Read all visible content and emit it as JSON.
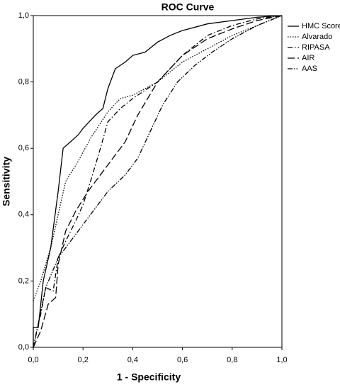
{
  "chart_data": {
    "type": "line",
    "title": "ROC Curve",
    "x_label": "1 - Specificity",
    "y_label": "Sensitivity",
    "xlim": [
      0,
      1
    ],
    "ylim": [
      0,
      1
    ],
    "xticks": [
      {
        "value": 0,
        "label": "0,0"
      },
      {
        "value": 0.2,
        "label": "0,2"
      },
      {
        "value": 0.4,
        "label": "0,4"
      },
      {
        "value": 0.6,
        "label": "0,6"
      },
      {
        "value": 0.8,
        "label": "0,8"
      },
      {
        "value": 1,
        "label": "1,0"
      }
    ],
    "yticks": [
      {
        "value": 0,
        "label": "0,0"
      },
      {
        "value": 0.2,
        "label": "0,2"
      },
      {
        "value": 0.4,
        "label": "0,4"
      },
      {
        "value": 0.6,
        "label": "0,6"
      },
      {
        "value": 0.8,
        "label": "0,8"
      },
      {
        "value": 1,
        "label": "1,0"
      }
    ],
    "grid": false,
    "legend": "right",
    "series": [
      {
        "name": "HMC Score",
        "color": "#000000",
        "style": "solid",
        "x": [
          0,
          0,
          0.02,
          0.04,
          0.07,
          0.1,
          0.12,
          0.15,
          0.18,
          0.2,
          0.25,
          0.28,
          0.3,
          0.33,
          0.37,
          0.4,
          0.45,
          0.5,
          0.55,
          0.6,
          0.7,
          0.8,
          0.9,
          1
        ],
        "values": [
          0,
          0.06,
          0.06,
          0.2,
          0.3,
          0.47,
          0.6,
          0.62,
          0.64,
          0.66,
          0.7,
          0.72,
          0.78,
          0.84,
          0.86,
          0.88,
          0.89,
          0.92,
          0.94,
          0.955,
          0.975,
          0.985,
          0.995,
          1
        ]
      },
      {
        "name": "Alvarado",
        "color": "#000000",
        "style": "dotted",
        "x": [
          0,
          0.03,
          0.07,
          0.1,
          0.13,
          0.18,
          0.23,
          0.3,
          0.35,
          0.4,
          0.5,
          0.6,
          0.7,
          0.8,
          0.9,
          1
        ],
        "values": [
          0.14,
          0.2,
          0.3,
          0.4,
          0.5,
          0.56,
          0.63,
          0.71,
          0.75,
          0.76,
          0.8,
          0.86,
          0.9,
          0.94,
          0.97,
          1
        ]
      },
      {
        "name": "RIPASA",
        "color": "#000000",
        "style": "dash-dot",
        "x": [
          0,
          0.03,
          0.05,
          0.08,
          0.1,
          0.13,
          0.17,
          0.2,
          0.23,
          0.27,
          0.3,
          0.35,
          0.4,
          0.5,
          0.6,
          0.7,
          0.8,
          0.9,
          1
        ],
        "values": [
          0,
          0.1,
          0.18,
          0.17,
          0.27,
          0.32,
          0.38,
          0.43,
          0.5,
          0.6,
          0.68,
          0.72,
          0.75,
          0.8,
          0.88,
          0.94,
          0.97,
          0.99,
          1
        ]
      },
      {
        "name": "AIR",
        "color": "#000000",
        "style": "long-dash",
        "x": [
          0,
          0.03,
          0.06,
          0.09,
          0.1,
          0.13,
          0.17,
          0.22,
          0.3,
          0.37,
          0.42,
          0.5,
          0.6,
          0.7,
          0.8,
          0.9,
          1
        ],
        "values": [
          0,
          0.05,
          0.13,
          0.15,
          0.25,
          0.35,
          0.41,
          0.47,
          0.55,
          0.62,
          0.7,
          0.8,
          0.88,
          0.93,
          0.96,
          0.985,
          1
        ]
      },
      {
        "name": "AAS",
        "color": "#000000",
        "style": "dash-dot-dot",
        "x": [
          0,
          0.05,
          0.1,
          0.15,
          0.2,
          0.25,
          0.3,
          0.37,
          0.42,
          0.47,
          0.52,
          0.58,
          0.65,
          0.72,
          0.8,
          0.9,
          1
        ],
        "values": [
          0,
          0.18,
          0.27,
          0.32,
          0.37,
          0.42,
          0.47,
          0.52,
          0.57,
          0.65,
          0.73,
          0.8,
          0.85,
          0.89,
          0.93,
          0.97,
          1
        ]
      }
    ]
  }
}
